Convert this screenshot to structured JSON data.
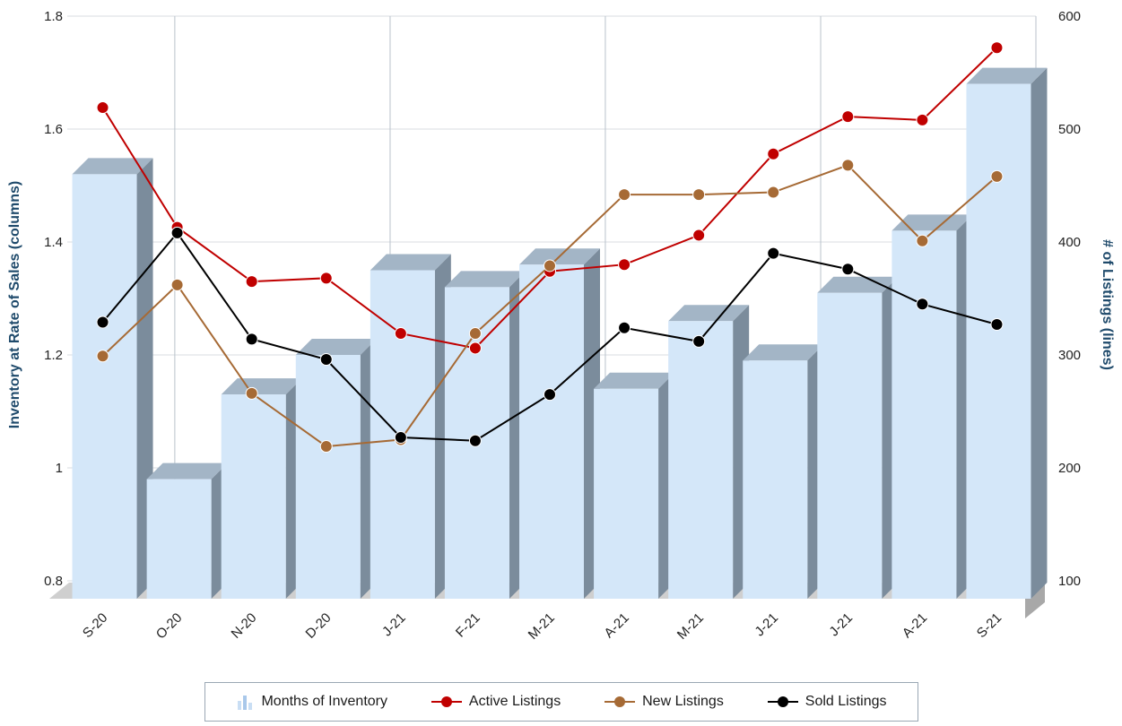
{
  "chart_data": {
    "type": "bar",
    "categories": [
      "S-20",
      "O-20",
      "N-20",
      "D-20",
      "J-21",
      "F-21",
      "M-21",
      "A-21",
      "M-21",
      "J-21",
      "J-21",
      "A-21",
      "S-21"
    ],
    "series": [
      {
        "name": "Months of Inventory",
        "type": "bar",
        "axis": "left",
        "values": [
          1.52,
          0.98,
          1.13,
          1.2,
          1.35,
          1.32,
          1.36,
          1.14,
          1.26,
          1.19,
          1.31,
          1.42,
          1.68
        ]
      },
      {
        "name": "Active Listings",
        "type": "line",
        "axis": "right",
        "values": [
          519,
          413,
          365,
          368,
          319,
          306,
          374,
          380,
          406,
          478,
          511,
          508,
          572
        ]
      },
      {
        "name": "New Listings",
        "type": "line",
        "axis": "right",
        "values": [
          299,
          362,
          266,
          219,
          225,
          319,
          379,
          442,
          442,
          444,
          468,
          401,
          458
        ]
      },
      {
        "name": "Sold Listings",
        "type": "line",
        "axis": "right",
        "values": [
          329,
          408,
          314,
          296,
          227,
          224,
          265,
          324,
          312,
          390,
          376,
          345,
          327
        ]
      }
    ],
    "ylabel": "Inventory at Rate of Sales (columns)",
    "y2label": "# of Listings (lines)",
    "ylim": [
      0.8,
      1.8
    ],
    "y2lim": [
      100,
      600
    ],
    "yticks": [
      "0.8",
      "1",
      "1.2",
      "1.4",
      "1.6",
      "1.8"
    ],
    "y2ticks": [
      "100",
      "200",
      "300",
      "400",
      "500",
      "600"
    ],
    "legend_position": "bottom",
    "grid": true
  },
  "colors": {
    "bar_front": "#d4e7f9",
    "bar_top": "#a3b5c6",
    "bar_side": "#7b8c9c",
    "active": "#c00000",
    "new": "#a66a35",
    "sold": "#000000",
    "axis_title": "#1f4a6b"
  }
}
